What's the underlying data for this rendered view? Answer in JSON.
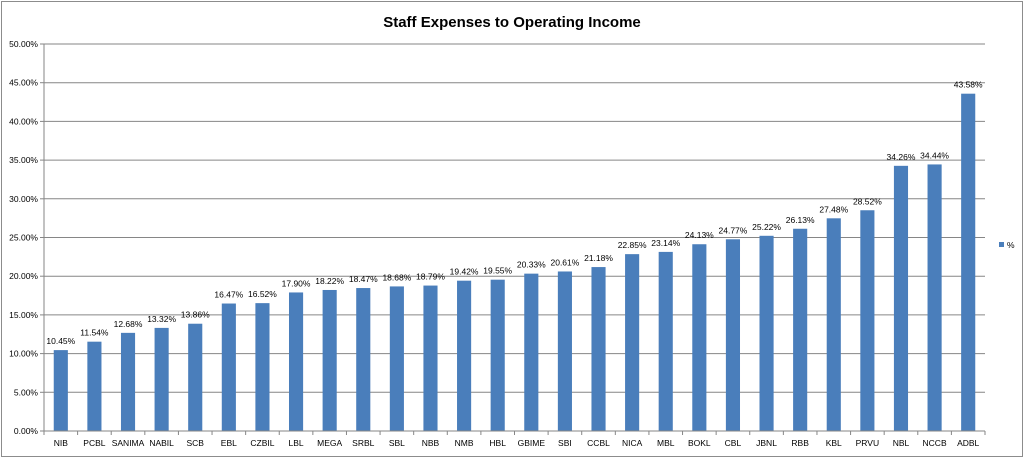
{
  "chart_data": {
    "type": "bar",
    "title": "Staff Expenses to Operating Income",
    "categories": [
      "NIB",
      "PCBL",
      "SANIMA",
      "NABIL",
      "SCB",
      "EBL",
      "CZBIL",
      "LBL",
      "MEGA",
      "SRBL",
      "SBL",
      "NBB",
      "NMB",
      "HBL",
      "GBIME",
      "SBI",
      "CCBL",
      "NICA",
      "MBL",
      "BOKL",
      "CBL",
      "JBNL",
      "RBB",
      "KBL",
      "PRVU",
      "NBL",
      "NCCB",
      "ADBL"
    ],
    "series": [
      {
        "name": "%",
        "values": [
          10.45,
          11.54,
          12.68,
          13.32,
          13.86,
          16.47,
          16.52,
          17.9,
          18.22,
          18.47,
          18.68,
          18.79,
          19.42,
          19.55,
          20.33,
          20.61,
          21.18,
          22.85,
          23.14,
          24.13,
          24.77,
          25.22,
          26.13,
          27.48,
          28.52,
          34.26,
          34.44,
          43.58
        ],
        "color": "#4a7ebb"
      }
    ],
    "data_labels": [
      "10.45%",
      "11.54%",
      "12.68%",
      "13.32%",
      "13.86%",
      "16.47%",
      "16.52%",
      "17.90%",
      "18.22%",
      "18.47%",
      "18.68%",
      "18.79%",
      "19.42%",
      "19.55%",
      "20.33%",
      "20.61%",
      "21.18%",
      "22.85%",
      "23.14%",
      "24.13%",
      "24.77%",
      "25.22%",
      "26.13%",
      "27.48%",
      "28.52%",
      "34.26%",
      "34.44%",
      "43.58%"
    ],
    "y_ticks": [
      0,
      5,
      10,
      15,
      20,
      25,
      30,
      35,
      40,
      45,
      50
    ],
    "y_tick_labels": [
      "0.00%",
      "5.00%",
      "10.00%",
      "15.00%",
      "20.00%",
      "25.00%",
      "30.00%",
      "35.00%",
      "40.00%",
      "45.00%",
      "50.00%"
    ],
    "ylim": [
      0,
      50
    ],
    "grid": true,
    "legend": {
      "position": "right",
      "entries": [
        "%"
      ]
    }
  }
}
